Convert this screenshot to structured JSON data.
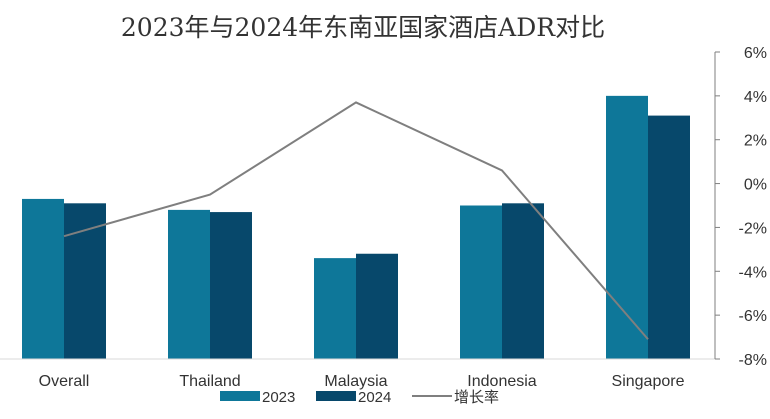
{
  "chart_data": {
    "type": "bar",
    "title": "2023年与2024年东南亚国家酒店ADR对比",
    "xlabel": "",
    "ylabel": "",
    "categories": [
      "Overall",
      "Thailand",
      "Malaysia",
      "Indonesia",
      "Singapore"
    ],
    "series": [
      {
        "name": "2023",
        "type": "bar",
        "color": "#0e7799",
        "values": [
          73,
          68,
          46,
          70,
          120
        ]
      },
      {
        "name": "2024",
        "type": "bar",
        "color": "#07486b",
        "values": [
          71,
          67,
          48,
          71,
          111
        ]
      }
    ],
    "line_series": {
      "name": "增长率",
      "type": "line",
      "axis": "right",
      "color": "#7f7f7f",
      "values": [
        -2.4,
        -0.5,
        3.7,
        0.6,
        -7.1
      ]
    },
    "left_axis_range": [
      0,
      140
    ],
    "right_axis": {
      "range": [
        -8,
        6
      ],
      "ticks": [
        "6%",
        "4%",
        "2%",
        "0%",
        "-2%",
        "-4%",
        "-6%",
        "-8%"
      ]
    },
    "left_axis_visible": false,
    "grid": false,
    "legend_position": "bottom"
  }
}
